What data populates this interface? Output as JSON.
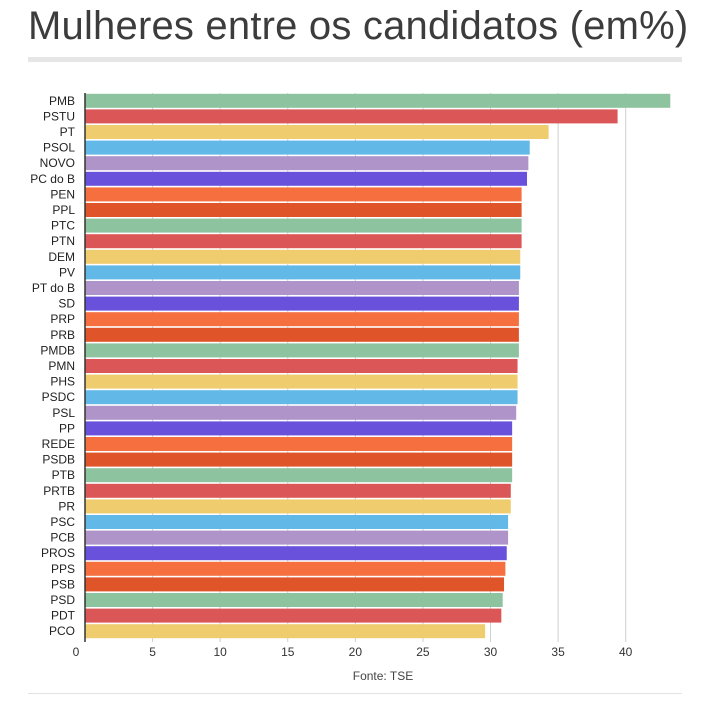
{
  "title": "Mulheres entre os candidatos (em%)",
  "source": "Fonte: TSE",
  "chart_data": {
    "type": "bar",
    "orientation": "horizontal",
    "title": "Mulheres entre os candidatos (em%)",
    "xlabel": "",
    "ylabel": "",
    "xlim": [
      0,
      43.5
    ],
    "xticks": [
      "0",
      "5",
      "10",
      "15",
      "20",
      "25",
      "30",
      "35",
      "40"
    ],
    "grid": true,
    "legend": "none",
    "categories": [
      "PMB",
      "PSTU",
      "PT",
      "PSOL",
      "NOVO",
      "PC do B",
      "PEN",
      "PPL",
      "PTC",
      "PTN",
      "DEM",
      "PV",
      "PT do B",
      "SD",
      "PRP",
      "PRB",
      "PMDB",
      "PMN",
      "PHS",
      "PSDC",
      "PSL",
      "PP",
      "REDE",
      "PSDB",
      "PTB",
      "PRTB",
      "PR",
      "PSC",
      "PCB",
      "PROS",
      "PPS",
      "PSB",
      "PSD",
      "PDT",
      "PCO"
    ],
    "values": [
      43.3,
      39.4,
      34.3,
      32.9,
      32.8,
      32.7,
      32.3,
      32.3,
      32.3,
      32.3,
      32.2,
      32.2,
      32.1,
      32.1,
      32.1,
      32.1,
      32.1,
      32.0,
      32.0,
      32.0,
      31.9,
      31.6,
      31.6,
      31.6,
      31.6,
      31.5,
      31.5,
      31.3,
      31.3,
      31.2,
      31.1,
      31.0,
      30.9,
      30.8,
      29.6
    ],
    "colors": [
      "#8ec3a0",
      "#db5757",
      "#efcd6e",
      "#62b8e6",
      "#ae94c9",
      "#6a51db",
      "#f6703f",
      "#e05429"
    ]
  }
}
